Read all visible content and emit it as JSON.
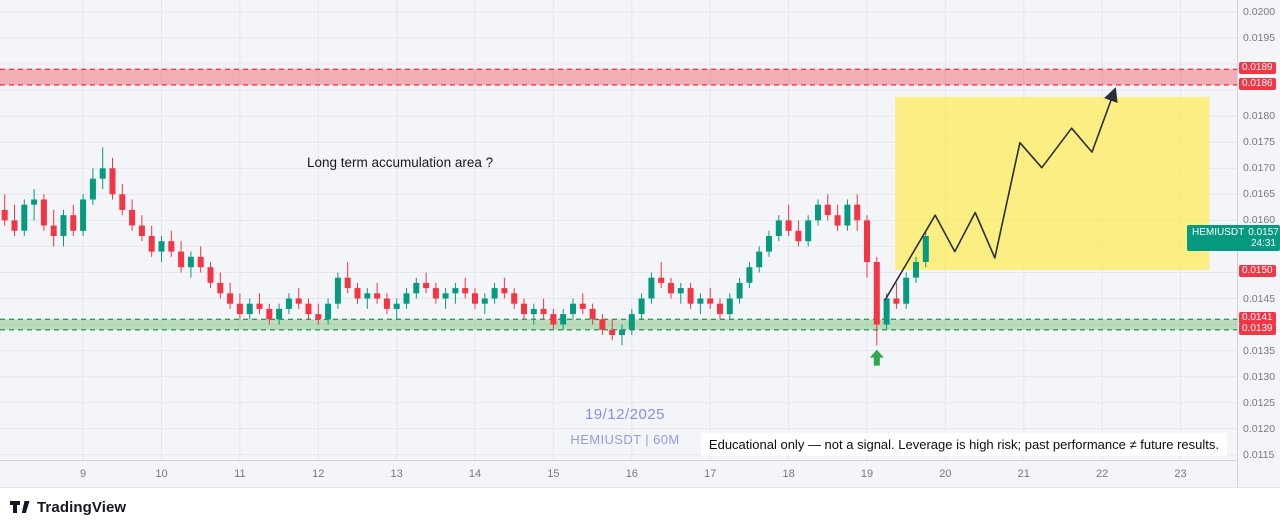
{
  "watermark": {
    "date": "19/12/2025",
    "symbol_line": "HEMIUSDT | 60M"
  },
  "annotation": {
    "accumulation": "Long term accumulation area ?"
  },
  "disclaimer": {
    "text": "Educational only — not a signal. Leverage is high risk; past performance ≠ future results."
  },
  "symbol_label": {
    "name": "HEMIUSDT",
    "price": "0.0157",
    "price_value": 0.0157,
    "countdown": "24:31",
    "bg": "#089981"
  },
  "footer": {
    "brand": "TradingView"
  },
  "colors": {
    "candle_up": "#089981",
    "candle_down": "#f23645",
    "resistance": "#f23645",
    "support": "#2e9e53",
    "projection_line": "#2a2e39",
    "highlight_box": "rgba(255,235,59,0.62)",
    "tag_red": "#f23645",
    "marker_green": "#2fa84f"
  },
  "chart_data": {
    "type": "candlestick",
    "symbol": "HEMIUSDT",
    "timeframe": "60M",
    "x_axis": {
      "unit": "day of December 2025",
      "ticks": [
        9,
        10,
        11,
        12,
        13,
        14,
        15,
        16,
        17,
        18,
        19,
        20,
        21,
        22,
        23
      ],
      "left_day": 7.94,
      "right_day": 23.72
    },
    "y_axis": {
      "ticks": [
        0.02,
        0.0195,
        0.018,
        0.0175,
        0.017,
        0.0165,
        0.016,
        0.0145,
        0.0135,
        0.013,
        0.0125,
        0.012,
        0.0115
      ],
      "grid_step": 0.0005,
      "grid_min": 0.0115,
      "grid_max": 0.02,
      "top_price": 0.02023,
      "bottom_price": 0.0114
    },
    "zones": [
      {
        "name": "resistance-zone",
        "top": 0.0189,
        "bottom": 0.0186,
        "fill": "rgba(242,54,69,0.38)",
        "border": "#f23645"
      },
      {
        "name": "support-zone",
        "top": 0.0141,
        "bottom": 0.0139,
        "fill": "rgba(76,175,80,0.35)",
        "border": "#2e9e53"
      }
    ],
    "price_tags": [
      {
        "price": 0.0189,
        "bg": "#f23645"
      },
      {
        "price": 0.0186,
        "bg": "#f23645"
      },
      {
        "price": 0.015,
        "bg": "#f23645"
      },
      {
        "price": 0.0141,
        "bg": "#f23645"
      },
      {
        "price": 0.0139,
        "bg": "#f23645"
      }
    ],
    "projection_box": {
      "day_from": 19.36,
      "day_to": 23.37,
      "price_top": 0.01837,
      "price_bottom": 0.01505
    },
    "projection_path": [
      [
        19.23,
        0.01447
      ],
      [
        19.87,
        0.0161
      ],
      [
        20.12,
        0.0154
      ],
      [
        20.38,
        0.01615
      ],
      [
        20.63,
        0.01528
      ],
      [
        20.95,
        0.01749
      ],
      [
        21.23,
        0.01701
      ],
      [
        21.61,
        0.01777
      ],
      [
        21.87,
        0.01731
      ],
      [
        22.16,
        0.0185
      ]
    ],
    "marker": {
      "type": "arrow-up",
      "day": 19.125,
      "price": 0.01352
    },
    "candles": {
      "start_day": 8.0,
      "step": 0.125,
      "scale": 0.0001,
      "ohlc": [
        [
          162,
          165,
          159,
          160
        ],
        [
          160,
          163,
          157,
          158
        ],
        [
          158,
          164,
          157,
          163
        ],
        [
          163,
          166,
          160,
          164
        ],
        [
          164,
          165,
          158,
          159
        ],
        [
          159,
          162,
          155,
          157
        ],
        [
          157,
          162,
          155,
          161
        ],
        [
          161,
          163,
          157,
          158
        ],
        [
          158,
          165,
          157,
          164
        ],
        [
          164,
          170,
          163,
          168
        ],
        [
          168,
          174,
          166,
          170
        ],
        [
          170,
          172,
          164,
          165
        ],
        [
          165,
          167,
          161,
          162
        ],
        [
          162,
          164,
          158,
          159
        ],
        [
          159,
          161,
          156,
          157
        ],
        [
          157,
          159,
          153,
          154
        ],
        [
          154,
          157,
          152,
          156
        ],
        [
          156,
          158,
          153,
          154
        ],
        [
          154,
          156,
          150,
          151
        ],
        [
          151,
          154,
          149,
          153
        ],
        [
          153,
          155,
          150,
          151
        ],
        [
          151,
          152,
          147,
          148
        ],
        [
          148,
          150,
          145,
          146
        ],
        [
          146,
          148,
          143,
          144
        ],
        [
          144,
          146,
          141,
          142
        ],
        [
          142,
          145,
          141,
          144
        ],
        [
          144,
          146,
          142,
          143
        ],
        [
          143,
          144,
          140,
          141
        ],
        [
          141,
          144,
          140,
          143
        ],
        [
          143,
          146,
          142,
          145
        ],
        [
          145,
          147,
          143,
          144
        ],
        [
          144,
          145,
          141,
          142
        ],
        [
          142,
          144,
          140,
          141
        ],
        [
          141,
          145,
          140,
          144
        ],
        [
          144,
          150,
          143,
          149
        ],
        [
          149,
          152,
          146,
          147
        ],
        [
          147,
          148,
          144,
          145
        ],
        [
          145,
          147,
          143,
          146
        ],
        [
          146,
          148,
          144,
          145
        ],
        [
          145,
          146,
          142,
          143
        ],
        [
          143,
          145,
          141,
          144
        ],
        [
          144,
          147,
          143,
          146
        ],
        [
          146,
          149,
          145,
          148
        ],
        [
          148,
          150,
          146,
          147
        ],
        [
          147,
          148,
          144,
          145
        ],
        [
          145,
          147,
          143,
          146
        ],
        [
          146,
          148,
          144,
          147
        ],
        [
          147,
          149,
          145,
          146
        ],
        [
          146,
          147,
          143,
          144
        ],
        [
          144,
          146,
          142,
          145
        ],
        [
          145,
          148,
          144,
          147
        ],
        [
          147,
          149,
          145,
          146
        ],
        [
          146,
          147,
          143,
          144
        ],
        [
          144,
          145,
          141,
          142
        ],
        [
          142,
          144,
          140,
          143
        ],
        [
          143,
          145,
          141,
          142
        ],
        [
          142,
          143,
          139,
          140
        ],
        [
          140,
          143,
          139,
          142
        ],
        [
          142,
          145,
          141,
          144
        ],
        [
          144,
          146,
          142,
          143
        ],
        [
          143,
          144,
          140,
          141
        ],
        [
          141,
          142,
          138,
          139
        ],
        [
          139,
          141,
          137,
          138
        ],
        [
          138,
          140,
          136,
          139
        ],
        [
          139,
          143,
          138,
          142
        ],
        [
          142,
          146,
          141,
          145
        ],
        [
          145,
          150,
          144,
          149
        ],
        [
          149,
          152,
          147,
          148
        ],
        [
          148,
          149,
          145,
          146
        ],
        [
          146,
          148,
          144,
          147
        ],
        [
          147,
          148,
          143,
          144
        ],
        [
          144,
          146,
          142,
          145
        ],
        [
          145,
          147,
          143,
          144
        ],
        [
          144,
          145,
          141,
          142
        ],
        [
          142,
          146,
          141,
          145
        ],
        [
          145,
          149,
          144,
          148
        ],
        [
          148,
          152,
          147,
          151
        ],
        [
          151,
          155,
          150,
          154
        ],
        [
          154,
          158,
          153,
          157
        ],
        [
          157,
          161,
          156,
          160
        ],
        [
          160,
          163,
          157,
          158
        ],
        [
          158,
          160,
          155,
          156
        ],
        [
          156,
          161,
          155,
          160
        ],
        [
          160,
          164,
          159,
          163
        ],
        [
          163,
          165,
          160,
          161
        ],
        [
          161,
          163,
          158,
          159
        ],
        [
          159,
          164,
          158,
          163
        ],
        [
          163,
          165,
          158,
          160
        ],
        [
          160,
          161,
          149,
          152
        ],
        [
          152,
          153,
          136,
          140
        ],
        [
          140,
          146,
          139,
          145
        ],
        [
          145,
          148,
          143,
          144
        ],
        [
          144,
          150,
          143,
          149
        ],
        [
          149,
          153,
          148,
          152
        ],
        [
          152,
          158,
          151,
          157
        ]
      ]
    }
  }
}
